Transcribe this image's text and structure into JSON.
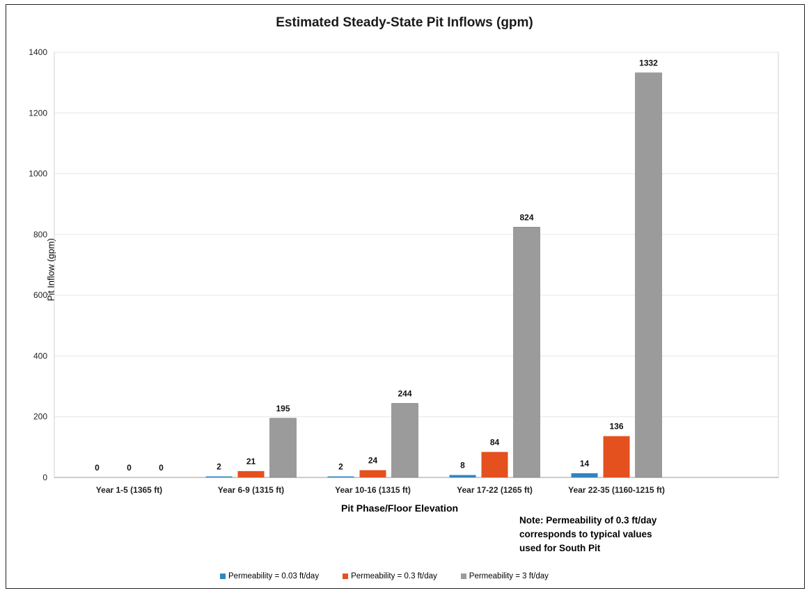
{
  "chart_data": {
    "type": "bar",
    "title": "Estimated Steady-State Pit Inflows (gpm)",
    "xlabel": "Pit Phase/Floor Elevation",
    "ylabel": "Pit Inflow (gpm)",
    "ylim": [
      0,
      1400
    ],
    "yticks": [
      "0",
      "200",
      "400",
      "600",
      "800",
      "1000",
      "1200",
      "1400"
    ],
    "grid": true,
    "legend_position": "bottom",
    "categories": [
      "Year 1-5 (1365 ft)",
      "Year 6-9 (1315 ft)",
      "Year 10-16 (1315 ft)",
      "Year 17-22 (1265 ft)",
      "Year 22-35 (1160-1215 ft)"
    ],
    "series": [
      {
        "name": "Permeability = 0.03 ft/day",
        "color": "#2e86c1",
        "values": [
          0,
          2,
          2,
          8,
          14
        ],
        "labels": [
          "0",
          "2",
          "2",
          "8",
          "14"
        ]
      },
      {
        "name": "Permeability = 0.3 ft/day",
        "color": "#e4501e",
        "values": [
          0,
          21,
          24,
          84,
          136
        ],
        "labels": [
          "0",
          "21",
          "24",
          "84",
          "136"
        ]
      },
      {
        "name": "Permeability = 3 ft/day",
        "color": "#9b9b9b",
        "values": [
          0,
          195,
          244,
          824,
          1332
        ],
        "labels": [
          "0",
          "195",
          "244",
          "824",
          "1332"
        ]
      }
    ]
  },
  "note": {
    "line1": "Note: Permeability of 0.3 ft/day",
    "line2": "corresponds to typical values",
    "line3": "used for South Pit"
  }
}
